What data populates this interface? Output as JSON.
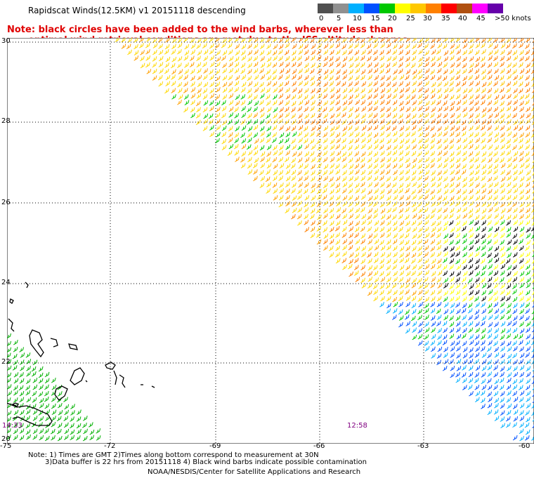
{
  "title": "Rapidscat Winds(12.5KM) v1 20151118 descending",
  "note_line1": "Note: black circles have been added to the wind barbs, wherever less than",
  "note_line2": "optimal wind retrieval conditions are met due to the ISS altitude changes.",
  "colorbar": {
    "labels": [
      "0",
      "5",
      "10",
      "15",
      "20",
      "25",
      "30",
      "35",
      "40",
      "45",
      ">50 knots"
    ],
    "colors": [
      "#555555",
      "#888888",
      "#00aaff",
      "#0060ff",
      "#00cc00",
      "#ffff00",
      "#ffcc00",
      "#ff8800",
      "#ff0000",
      "#cc5500",
      "#cc00cc",
      "#660099"
    ]
  },
  "lat_labels": [
    "30",
    "28",
    "26",
    "24",
    "22",
    "20"
  ],
  "lon_labels": [
    "-75",
    "-72",
    "-69",
    "-66",
    "-63",
    "-60"
  ],
  "time_labels": {
    "left": "14:33",
    "right": "12:58"
  },
  "footer": {
    "line1": "Note: 1) Times are GMT 2)Times along bottom correspond to measurement at 30N",
    "line2": "3)Data buffer is 22 hrs from 20151118 4) Black wind barbs indicate possible contamination",
    "line3": "NOAA/NESDIS/Center for Satellite Applications and Research"
  }
}
